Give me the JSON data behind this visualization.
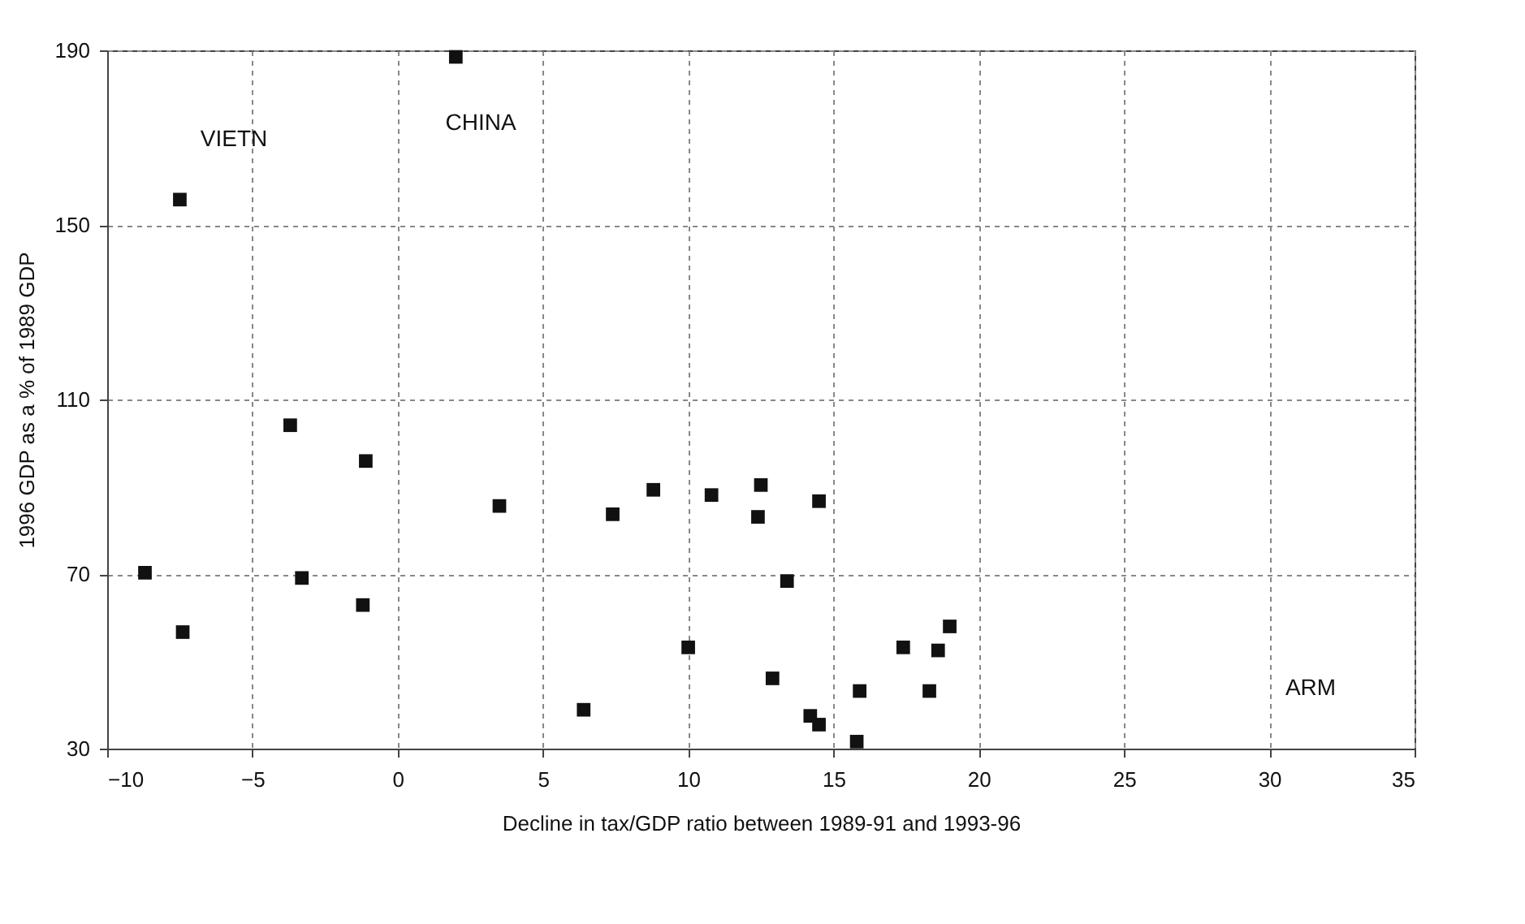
{
  "chart_data": {
    "type": "scatter",
    "xlabel": "Decline in tax/GDP ratio between 1989-91 and 1993-96",
    "ylabel": "1996 GDP as a % of 1989 GDP",
    "x": [
      2.0,
      -7.5,
      -3.7,
      -1.1,
      3.5,
      7.4,
      8.8,
      10.8,
      12.5,
      12.4,
      -8.7,
      -3.3,
      -1.2,
      -7.4,
      10.0,
      6.4,
      14.5,
      13.4,
      12.9,
      14.2,
      14.5,
      15.9,
      15.8,
      17.4,
      18.6,
      18.3,
      19.0
    ],
    "values": [
      188.5,
      155.8,
      104.1,
      95.9,
      85.6,
      83.7,
      89.3,
      88.1,
      90.4,
      83.1,
      70.3,
      69.1,
      62.9,
      56.7,
      53.2,
      38.9,
      86.7,
      68.4,
      46.1,
      37.5,
      35.5,
      43.2,
      31.6,
      53.2,
      52.5,
      43.2,
      58.0
    ],
    "color": "#111111",
    "marker": "square",
    "xlim": [
      -10,
      35
    ],
    "xticks": [
      -10,
      -5,
      0,
      5,
      10,
      15,
      20,
      25,
      30,
      35
    ],
    "ylim": [
      30,
      190
    ],
    "yticks": [
      30,
      70,
      110,
      150,
      190
    ],
    "grid": true,
    "annotations": [
      "VIETN",
      "CHINA",
      "ARM"
    ]
  }
}
